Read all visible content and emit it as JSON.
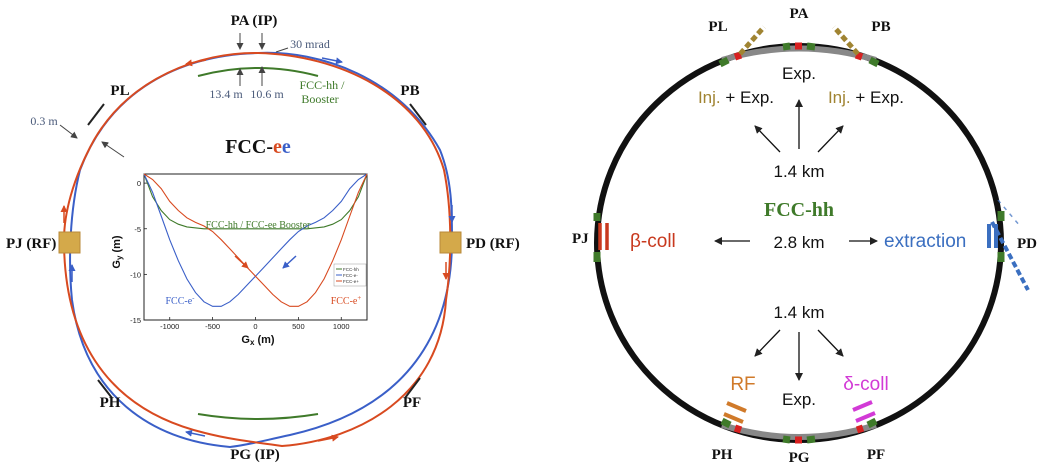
{
  "colors": {
    "eminus": "#3a5fc8",
    "eplus": "#d84a20",
    "hh": "#3f7a2a",
    "collider": "#1a1a1a",
    "inj": "#a08432",
    "rf": "#d07a2a",
    "dcoll": "#d23ad6",
    "extraction": "#3b6fc0",
    "bcoll": "#c8391e",
    "rf_block": "#d4a94a"
  },
  "left": {
    "title_main": "FCC-",
    "title_e1": "e",
    "title_e2": "e",
    "points": {
      "pa": "PA (IP)",
      "pb": "PB",
      "pd": "PD (RF)",
      "pf": "PF",
      "pg": "PG (IP)",
      "ph": "PH",
      "pj": "PJ (RF)",
      "pl": "PL"
    },
    "annotations": {
      "mrad": "30 mrad",
      "d1": "13.4 m",
      "d2": "10.6 m",
      "hh_line1": "FCC-hh /",
      "hh_line2": "Booster",
      "offset": "0.3 m"
    }
  },
  "inset": {
    "ylabel_main": "G",
    "ylabel_sub": "y",
    "ylabel_unit": " (m)",
    "xlabel_main": "G",
    "xlabel_sub": "x",
    "xlabel_unit": " (m)",
    "annotation_hh": "FCC-hh / FCC-ee Booster",
    "annotation_em": "FCC-e",
    "annotation_em_sup": "-",
    "annotation_ep": "FCC-e",
    "annotation_ep_sup": "+",
    "legend": [
      "FCC-hh",
      "FCC-e-",
      "FCC-e+"
    ]
  },
  "chart_data": {
    "type": "line",
    "xlabel": "Gx (m)",
    "ylabel": "Gy (m)",
    "xlim": [
      -1300,
      1300
    ],
    "ylim": [
      -15,
      1
    ],
    "xticks": [
      -1000,
      -500,
      0,
      500,
      1000
    ],
    "yticks": [
      0,
      -5,
      -10,
      -15
    ],
    "legend_position": "right",
    "series": [
      {
        "name": "FCC-hh",
        "color": "#3f7a2a",
        "x": [
          -1300,
          -1200,
          -1100,
          -1000,
          -900,
          -800,
          -600,
          -400,
          -200,
          0,
          200,
          400,
          600,
          800,
          900,
          1000,
          1100,
          1200,
          1300
        ],
        "y": [
          1,
          -1.5,
          -3,
          -4,
          -4.5,
          -4.8,
          -5,
          -5,
          -5,
          -5,
          -5,
          -5,
          -5,
          -4.8,
          -4.5,
          -4,
          -3,
          -1.5,
          1
        ]
      },
      {
        "name": "FCC-e-",
        "color": "#3a5fc8",
        "x": [
          -1300,
          -1200,
          -1100,
          -1000,
          -900,
          -800,
          -700,
          -600,
          -500,
          -400,
          -300,
          -200,
          -100,
          0,
          100,
          200,
          300,
          400,
          500,
          600,
          700,
          800,
          900,
          1000,
          1100,
          1200,
          1300
        ],
        "y": [
          1,
          -1,
          -3.6,
          -6.2,
          -8.5,
          -10.5,
          -12,
          -13,
          -13.5,
          -13.5,
          -13,
          -12.2,
          -11.2,
          -10.2,
          -9.2,
          -8.2,
          -7.2,
          -6.2,
          -5.3,
          -4.7,
          -4.3,
          -3.8,
          -3,
          -2,
          -0.6,
          0.4,
          1
        ]
      },
      {
        "name": "FCC-e+",
        "color": "#d84a20",
        "x": [
          -1300,
          -1200,
          -1100,
          -1000,
          -900,
          -800,
          -700,
          -600,
          -500,
          -400,
          -300,
          -200,
          -100,
          0,
          100,
          200,
          300,
          400,
          500,
          600,
          700,
          800,
          900,
          1000,
          1100,
          1200,
          1300
        ],
        "y": [
          1,
          0.4,
          -0.6,
          -2,
          -3,
          -3.8,
          -4.3,
          -4.7,
          -5.3,
          -6.2,
          -7.2,
          -8.2,
          -9.2,
          -10.2,
          -11.2,
          -12.2,
          -13,
          -13.5,
          -13.5,
          -13,
          -12,
          -10.5,
          -8.5,
          -6.2,
          -3.6,
          -1,
          1
        ]
      }
    ]
  },
  "right": {
    "title": "FCC-hh",
    "points": {
      "pa": "PA",
      "pb": "PB",
      "pd": "PD",
      "pf": "PF",
      "pg": "PG",
      "ph": "PH",
      "pj": "PJ",
      "pl": "PL"
    },
    "labels": {
      "exp_top": "Exp.",
      "inj_left": "Inj.",
      "inj_left_rest": " + Exp.",
      "inj_right": "Inj.",
      "inj_right_rest": " + Exp.",
      "km_top": "1.4 km",
      "bcoll": "β-coll",
      "km_mid": "2.8 km",
      "extraction": "extraction",
      "km_bottom": "1.4 km",
      "rf": "RF",
      "exp_bottom": "Exp.",
      "dcoll": "δ-coll"
    }
  }
}
